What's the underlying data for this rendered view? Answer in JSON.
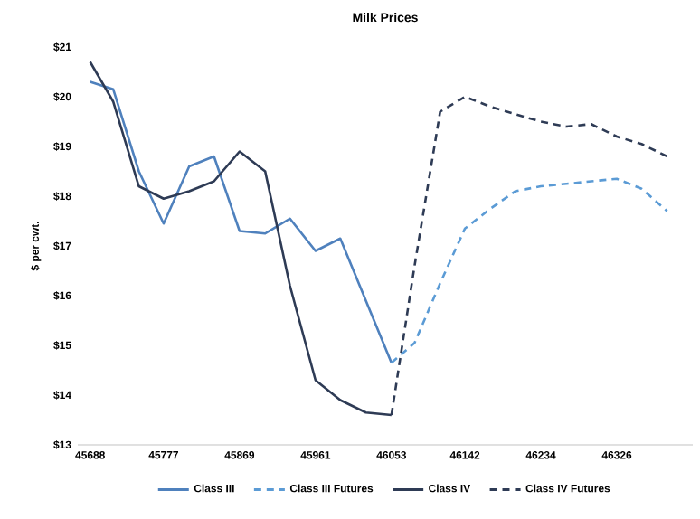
{
  "chart_data": {
    "type": "line",
    "title": "Milk Prices",
    "ylabel": "$ per cwt.",
    "xlim": [
      45673,
      46418
    ],
    "xticks": [
      45688,
      45777,
      45869,
      45961,
      46053,
      46142,
      46234,
      46326
    ],
    "ylim": [
      13,
      21
    ],
    "yticks": [
      {
        "value": 13,
        "label": "$13"
      },
      {
        "value": 14,
        "label": "$14"
      },
      {
        "value": 15,
        "label": "$15"
      },
      {
        "value": 16,
        "label": "$16"
      },
      {
        "value": 17,
        "label": "$17"
      },
      {
        "value": 18,
        "label": "$18"
      },
      {
        "value": 19,
        "label": "$19"
      },
      {
        "value": 20,
        "label": "$20"
      },
      {
        "value": 21,
        "label": "$21"
      }
    ],
    "grid": false,
    "legend": "bottom",
    "marker": "none",
    "series": [
      {
        "name": "Class III",
        "color": "#4f81bd",
        "line_style": "solid",
        "x": [
          45688,
          45716,
          45747,
          45777,
          45808,
          45838,
          45869,
          45900,
          45930,
          45961,
          45991,
          46022,
          46053
        ],
        "values": [
          20.3,
          20.15,
          18.5,
          17.45,
          18.6,
          18.8,
          17.3,
          17.25,
          17.55,
          16.9,
          17.15,
          15.9,
          14.65
        ]
      },
      {
        "name": "Class III Futures",
        "color": "#5b9bd5",
        "line_style": "dashed",
        "x": [
          46053,
          46081,
          46112,
          46142,
          46173,
          46203,
          46234,
          46265,
          46295,
          46326,
          46356,
          46387
        ],
        "values": [
          14.65,
          15.05,
          16.25,
          17.35,
          17.75,
          18.1,
          18.2,
          18.25,
          18.3,
          18.35,
          18.15,
          17.7
        ]
      },
      {
        "name": "Class IV",
        "color": "#2e3b55",
        "line_style": "solid",
        "x": [
          45688,
          45716,
          45747,
          45777,
          45808,
          45838,
          45869,
          45900,
          45930,
          45961,
          45991,
          46022,
          46053
        ],
        "values": [
          20.7,
          19.9,
          18.2,
          17.95,
          18.1,
          18.3,
          18.9,
          18.5,
          16.2,
          14.3,
          13.9,
          13.65,
          13.6
        ]
      },
      {
        "name": "Class IV Futures",
        "color": "#2e3b55",
        "line_style": "dashed",
        "x": [
          46053,
          46081,
          46112,
          46142,
          46173,
          46203,
          46234,
          46265,
          46295,
          46326,
          46356,
          46387
        ],
        "values": [
          13.6,
          16.6,
          19.7,
          20.0,
          19.8,
          19.65,
          19.5,
          19.4,
          19.45,
          19.2,
          19.05,
          18.8
        ]
      }
    ]
  }
}
